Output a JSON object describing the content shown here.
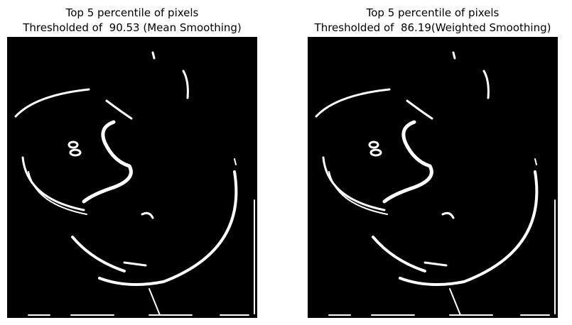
{
  "panels": [
    {
      "title": "Top 5 percentile of pixels",
      "subtitle": "Thresholded of  90.53 (Mean Smoothing)"
    },
    {
      "title": "Top 5 percentile of pixels",
      "subtitle": "Thresholded of  86.19(Weighted Smoothing)"
    }
  ]
}
